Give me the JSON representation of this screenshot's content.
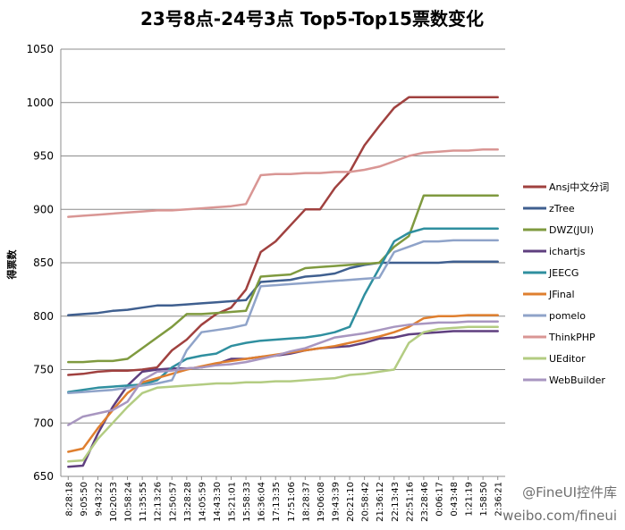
{
  "chart_data": {
    "type": "line",
    "title": "23号8点-24号3点  Top5-Top15票数变化",
    "ylabel": "得票数",
    "xlabel": "",
    "ylim": [
      650,
      1050
    ],
    "yticks": [
      650,
      700,
      750,
      800,
      850,
      900,
      950,
      1000,
      1050
    ],
    "x": [
      "8:28:18",
      "9:05:50",
      "9:43:22",
      "10:20:53",
      "10:58:24",
      "11:35:55",
      "12:13:26",
      "12:50:57",
      "13:28:28",
      "14:05:59",
      "14:43:30",
      "15:21:01",
      "15:58:33",
      "16:36:04",
      "17:13:35",
      "17:51:06",
      "18:28:37",
      "19:06:08",
      "19:43:39",
      "20:21:10",
      "20:58:42",
      "21:36:12",
      "22:13:43",
      "22:51:16",
      "23:28:46",
      "0:06:17",
      "0:43:48",
      "1:21:19",
      "1:58:50",
      "2:36:21"
    ],
    "grid": true,
    "legend_position": "right",
    "series": [
      {
        "name": "Ansj中文分词",
        "color": "#A0413F",
        "values": [
          745,
          746,
          748,
          749,
          749,
          750,
          752,
          768,
          778,
          792,
          802,
          808,
          825,
          860,
          870,
          885,
          900,
          900,
          920,
          935,
          960,
          978,
          995,
          1005,
          1005,
          1005,
          1005,
          1005,
          1005,
          1005
        ]
      },
      {
        "name": "zTree",
        "color": "#3F5F8F",
        "values": [
          801,
          802,
          803,
          805,
          806,
          808,
          810,
          810,
          811,
          812,
          813,
          814,
          815,
          832,
          833,
          834,
          837,
          838,
          840,
          845,
          848,
          850,
          850,
          850,
          850,
          850,
          851,
          851,
          851,
          851
        ]
      },
      {
        "name": "DWZ(JUI)",
        "color": "#7F9A3F",
        "values": [
          757,
          757,
          758,
          758,
          760,
          770,
          780,
          790,
          802,
          802,
          803,
          804,
          805,
          837,
          838,
          839,
          845,
          846,
          847,
          848,
          849,
          850,
          865,
          875,
          913,
          913,
          913,
          913,
          913,
          913
        ]
      },
      {
        "name": "ichartjs",
        "color": "#5F3F7F",
        "values": [
          659,
          660,
          690,
          715,
          735,
          748,
          750,
          751,
          751,
          752,
          755,
          760,
          760,
          762,
          763,
          765,
          768,
          770,
          771,
          772,
          775,
          779,
          780,
          783,
          784,
          785,
          786,
          786,
          786,
          786
        ]
      },
      {
        "name": "JEECG",
        "color": "#2F8F9F",
        "values": [
          729,
          731,
          733,
          734,
          735,
          736,
          740,
          752,
          760,
          763,
          765,
          772,
          775,
          777,
          778,
          779,
          780,
          782,
          785,
          790,
          820,
          845,
          870,
          878,
          882,
          882,
          882,
          882,
          882,
          882
        ]
      },
      {
        "name": "JFinal",
        "color": "#DF7F2F",
        "values": [
          673,
          676,
          695,
          712,
          728,
          738,
          742,
          746,
          750,
          753,
          756,
          758,
          760,
          762,
          764,
          766,
          768,
          770,
          772,
          775,
          778,
          781,
          785,
          790,
          798,
          800,
          800,
          801,
          801,
          801
        ]
      },
      {
        "name": "pomelo",
        "color": "#8FA3C9",
        "values": [
          728,
          729,
          730,
          731,
          733,
          735,
          737,
          740,
          768,
          785,
          787,
          789,
          792,
          828,
          829,
          830,
          831,
          832,
          833,
          834,
          835,
          836,
          860,
          865,
          870,
          870,
          871,
          871,
          871,
          871
        ]
      },
      {
        "name": "ThinkPHP",
        "color": "#D99694",
        "values": [
          893,
          894,
          895,
          896,
          897,
          898,
          899,
          899,
          900,
          901,
          902,
          903,
          905,
          932,
          933,
          933,
          934,
          934,
          935,
          935,
          937,
          940,
          945,
          950,
          953,
          954,
          955,
          955,
          956,
          956
        ]
      },
      {
        "name": "UEditor",
        "color": "#B3CC82",
        "values": [
          664,
          665,
          685,
          700,
          715,
          728,
          733,
          734,
          735,
          736,
          737,
          737,
          738,
          738,
          739,
          739,
          740,
          741,
          742,
          745,
          746,
          748,
          750,
          775,
          785,
          788,
          789,
          790,
          790,
          790
        ]
      },
      {
        "name": "WebBuilder",
        "color": "#A896C0",
        "values": [
          698,
          706,
          709,
          712,
          720,
          740,
          748,
          749,
          751,
          752,
          754,
          755,
          757,
          760,
          763,
          767,
          770,
          775,
          780,
          782,
          784,
          787,
          790,
          792,
          793,
          794,
          794,
          795,
          795,
          795
        ]
      }
    ]
  },
  "watermark": {
    "line1": "@FineUI控件库",
    "line2": "weibo.com/fineui"
  }
}
